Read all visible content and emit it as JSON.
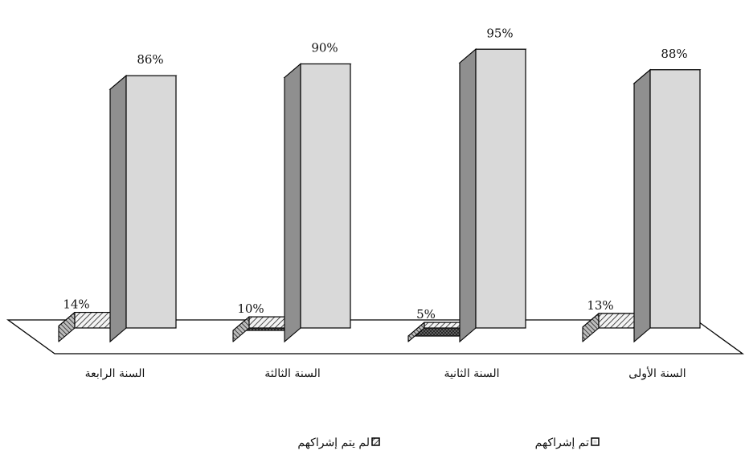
{
  "chart_data": {
    "type": "bar",
    "style": "3d-clustered",
    "categories": [
      "السنة الرابعة",
      "السنة الثالثة",
      "السنة الثانية",
      "السنة الأولى"
    ],
    "series": [
      {
        "name": "لم يتم إشراكهم",
        "values": [
          14,
          10,
          5,
          13
        ],
        "labels": [
          "14%",
          "10%",
          "5%",
          "13%"
        ],
        "fill": "hatched-light",
        "side_color": "#7a7a7a",
        "top_color": "#8c8c8c"
      },
      {
        "name": "تم إشراكهم",
        "values": [
          86,
          90,
          95,
          88
        ],
        "labels": [
          "86%",
          "90%",
          "95%",
          "88%"
        ],
        "fill": "#d9d9d9",
        "side_color": "#8f8f8f",
        "top_color": "#a6a6a6"
      }
    ],
    "ylim": [
      0,
      100
    ],
    "grid": false,
    "legend_position": "bottom-center",
    "legend_order": [
      1,
      0
    ]
  }
}
